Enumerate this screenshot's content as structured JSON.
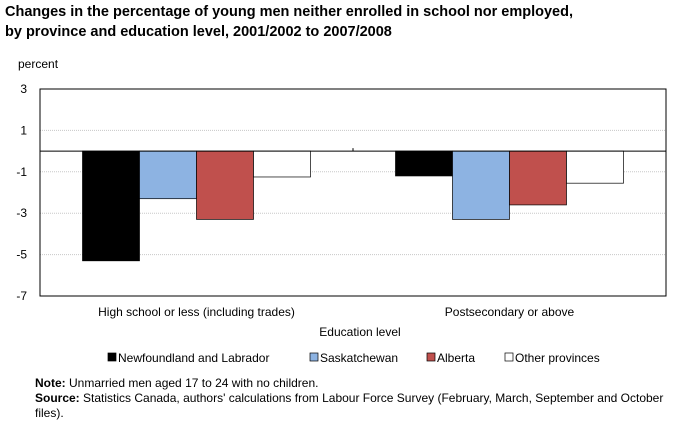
{
  "title_line1": "Changes in the percentage of young men neither enrolled in school nor employed,",
  "title_line2": "by province and education level, 2001/2002 to 2007/2008",
  "note_label": "Note:",
  "note_text": " Unmarried men aged 17 to 24 with no children.",
  "source_label": "Source:",
  "source_text": " Statistics Canada, authors' calculations from Labour Force Survey (February, March, September and October files).",
  "chart_data": {
    "type": "bar",
    "title": "Changes in the percentage of young men neither enrolled in school nor employed, by province and education level, 2001/2002 to 2007/2008",
    "xlabel": "Education level",
    "ylabel": "percent",
    "ylim": [
      -7,
      3
    ],
    "yticks": [
      3,
      1,
      -1,
      -3,
      -5,
      -7
    ],
    "grid": true,
    "legend": "bottom",
    "categories": [
      "High school or less (including trades)",
      "Postsecondary or above"
    ],
    "series": [
      {
        "name": "Newfoundland and Labrador",
        "values": [
          -5.3,
          -1.2
        ],
        "color": "#000000"
      },
      {
        "name": "Saskatchewan",
        "values": [
          -2.3,
          -3.3
        ],
        "color": "#8db3e2"
      },
      {
        "name": "Alberta",
        "values": [
          -3.3,
          -2.6
        ],
        "color": "#c0504d"
      },
      {
        "name": "Other provinces",
        "values": [
          -1.25,
          -1.55
        ],
        "color": "#ffffff"
      }
    ]
  }
}
